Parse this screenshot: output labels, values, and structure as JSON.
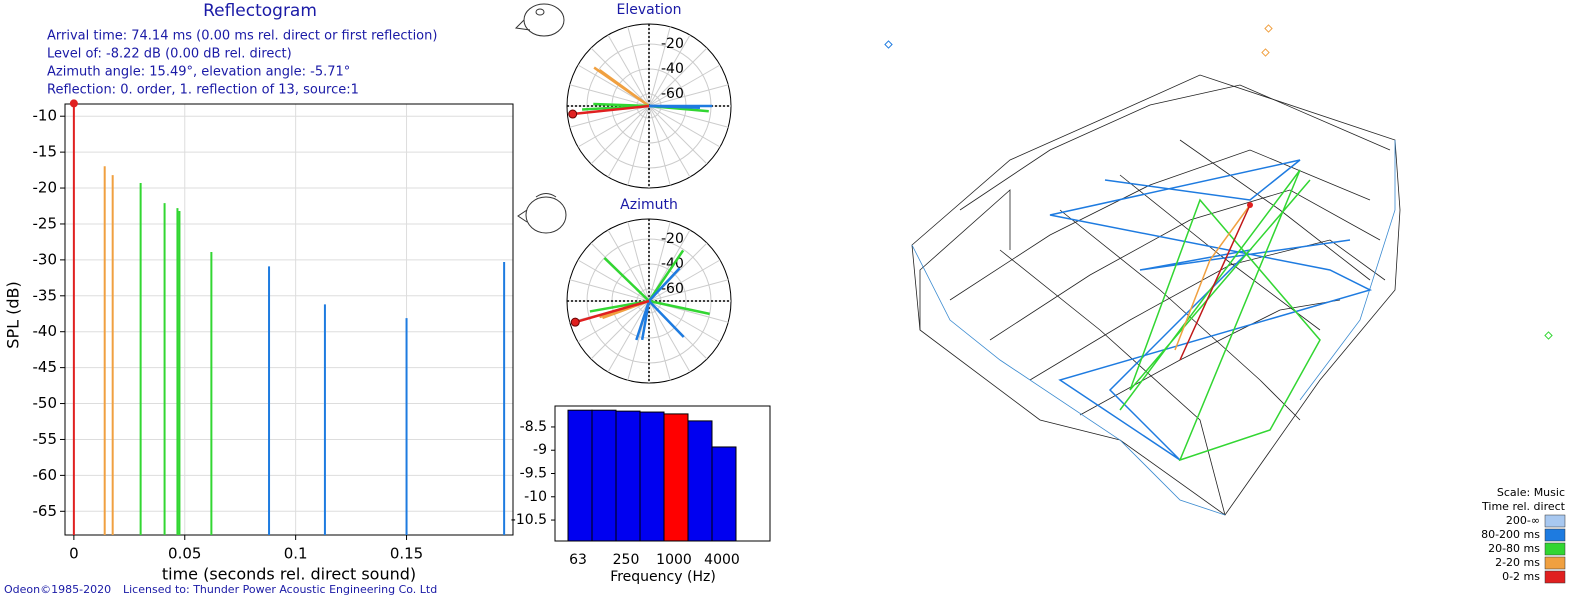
{
  "info": [
    "Arrival time: 74.14 ms (0.00 ms rel. direct or first reflection)",
    "Level of: -8.22 dB (0.00 dB rel. direct)",
    "Azimuth angle: 15.49°, elevation angle: -5.71°",
    "Reflection: 0. order, 1. reflection of 13, source:1"
  ],
  "footer": [
    "Odeon©1985-2020",
    "Licensed to: Thunder Power Acoustic Engineering Co. Ltd"
  ],
  "chart_data": [
    {
      "type": "stem",
      "title": "Reflectogram",
      "x_label": "time (seconds rel. direct sound)",
      "y_label": "SPL (dB)",
      "xlim": [
        -0.004,
        0.198
      ],
      "xticks": [
        0,
        0.05,
        0.1,
        0.15
      ],
      "ylim": [
        -68.3,
        -8.3
      ],
      "yticks": [
        -10,
        -15,
        -20,
        -25,
        -30,
        -35,
        -40,
        -45,
        -50,
        -55,
        -60,
        -65
      ],
      "grid": true,
      "legend_caption": "Scale: Music",
      "legend_title": "Time rel. direct",
      "series": [
        {
          "name": "200-∞",
          "color": "#a8c8f0",
          "x": [],
          "values": []
        },
        {
          "name": "80-200 ms",
          "color": "#1e7be0",
          "x": [
            0.088,
            0.1132,
            0.15,
            0.194
          ],
          "values": [
            -30.9,
            -36.2,
            -38.1,
            -30.3
          ]
        },
        {
          "name": "20-80 ms",
          "color": "#32d632",
          "x": [
            0.0301,
            0.0409,
            0.0467,
            0.0476,
            0.062
          ],
          "values": [
            -19.3,
            -22.1,
            -22.8,
            -23.2,
            -28.9
          ]
        },
        {
          "name": "2-20 ms",
          "color": "#f0a040",
          "x": [
            0.0139,
            0.0175
          ],
          "values": [
            -16.96,
            -18.2
          ]
        },
        {
          "name": "0-2 ms",
          "color": "#e02020",
          "x": [
            0
          ],
          "values": [
            -8.22
          ],
          "marker": true
        }
      ]
    },
    {
      "type": "polar",
      "title": "Elevation",
      "rlim": [
        -69.6,
        -4
      ],
      "rticks": [
        -20,
        -40,
        -60
      ],
      "series": [
        {
          "color": "#f0a040",
          "angles": [
            145,
            144
          ],
          "values": [
            -16,
            -20.8
          ]
        },
        {
          "color": "#32d632",
          "angles": [
            -5,
            183,
            178
          ],
          "values": [
            -21.6,
            -16,
            -25
          ]
        },
        {
          "color": "#1e7be0",
          "angles": [
            -2,
            0,
            -1
          ],
          "values": [
            -28.8,
            -19,
            -30
          ]
        },
        {
          "color": "#e02020",
          "angles": [
            186
          ],
          "values": [
            -8.22
          ],
          "marker": true
        }
      ]
    },
    {
      "type": "polar",
      "title": "Azimuth",
      "rlim": [
        -69.6,
        -4
      ],
      "rticks": [
        -20,
        -40,
        -60
      ],
      "series": [
        {
          "color": "#f0a040",
          "angles": [
            198,
            200
          ],
          "values": [
            -28,
            -30
          ]
        },
        {
          "color": "#32d632",
          "angles": [
            136,
            -12,
            190,
            56
          ],
          "values": [
            -20,
            -20,
            -21.6,
            -20.8
          ]
        },
        {
          "color": "#1e7be0",
          "angles": [
            252,
            314,
            47,
            260
          ],
          "values": [
            -36.8,
            -29.6,
            -33.6,
            -38
          ]
        },
        {
          "color": "#e02020",
          "angles": [
            196
          ],
          "values": [
            -8.22
          ],
          "marker": true
        }
      ]
    },
    {
      "type": "bar",
      "x_label": "Frequency (Hz)",
      "categories": [
        "63",
        null,
        "250",
        null,
        "1000",
        null,
        "4000",
        null
      ],
      "values": [
        -8.14,
        -8.14,
        -8.16,
        -8.18,
        -8.22,
        -8.37,
        -8.93,
        -10.95
      ],
      "colors": [
        "#0000f0",
        "#0000f0",
        "#0000f0",
        "#0000f0",
        "#ff0000",
        "#0000f0",
        "#0000f0",
        "#0000f0"
      ],
      "ylim": [
        -10.95,
        -8.05
      ],
      "yticks": [
        -8.5,
        -9,
        -9.5,
        -10,
        -10.5
      ]
    }
  ]
}
